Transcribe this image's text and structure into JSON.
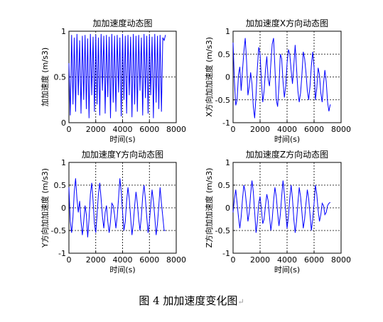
{
  "caption": {
    "text": "图 4  加加速度变化图",
    "mark": "↵"
  },
  "chart_data": [
    {
      "type": "line",
      "title": "加加速度动态图",
      "xlabel": "时间(s)",
      "ylabel": "加加速度 (m/s3)",
      "xlim": [
        0,
        8000
      ],
      "ylim": [
        0,
        1
      ],
      "xticks": [
        0,
        2000,
        4000,
        6000,
        8000
      ],
      "yticks": [
        0,
        0.5,
        1
      ],
      "ytick_labels": [
        "0",
        "0.5",
        "1"
      ],
      "grid": true,
      "series": [
        {
          "color": "#0000ff",
          "x": [
            0,
            100,
            200,
            300,
            400,
            500,
            600,
            700,
            800,
            900,
            1000,
            1100,
            1200,
            1300,
            1400,
            1500,
            1600,
            1700,
            1800,
            1900,
            2000,
            2100,
            2200,
            2300,
            2400,
            2500,
            2600,
            2700,
            2800,
            2900,
            3000,
            3100,
            3200,
            3300,
            3400,
            3500,
            3600,
            3700,
            3800,
            3900,
            4000,
            4100,
            4200,
            4300,
            4400,
            4500,
            4600,
            4700,
            4800,
            4900,
            5000,
            5100,
            5200,
            5300,
            5400,
            5500,
            5600,
            5700,
            5800,
            5900,
            6000,
            6100,
            6200,
            6300,
            6400,
            6500,
            6600,
            6700,
            6800,
            6900,
            7000,
            7100,
            7200
          ],
          "y": [
            0.65,
            0.08,
            0.96,
            0.2,
            0.93,
            0.12,
            0.97,
            0.3,
            0.9,
            0.1,
            0.95,
            0.25,
            0.96,
            0.15,
            0.92,
            0.05,
            0.97,
            0.3,
            0.94,
            0.12,
            0.96,
            0.2,
            0.93,
            0.08,
            0.97,
            0.35,
            0.95,
            0.1,
            0.96,
            0.28,
            0.94,
            0.05,
            0.97,
            0.22,
            0.95,
            0.12,
            0.96,
            0.33,
            0.93,
            0.07,
            0.97,
            0.25,
            0.95,
            0.1,
            0.96,
            0.3,
            0.94,
            0.06,
            0.97,
            0.2,
            0.95,
            0.12,
            0.96,
            0.35,
            0.93,
            0.08,
            0.97,
            0.27,
            0.95,
            0.1,
            0.96,
            0.3,
            0.94,
            0.05,
            0.97,
            0.22,
            0.95,
            0.15,
            0.96,
            0.12,
            0.93,
            0.9,
            0.96
          ]
        }
      ]
    },
    {
      "type": "line",
      "title": "加加速度X方向动态图",
      "xlabel": "时间(s)",
      "ylabel": "X方向加加速度 (m/s3)",
      "xlim": [
        0,
        8000
      ],
      "ylim": [
        -1,
        1
      ],
      "xticks": [
        0,
        2000,
        4000,
        6000,
        8000
      ],
      "yticks": [
        -1,
        -0.5,
        0,
        0.5,
        1
      ],
      "ytick_labels": [
        "-1",
        "-0.5",
        "0",
        "0.5",
        "1"
      ],
      "grid": true,
      "series": [
        {
          "color": "#0000ff",
          "x": [
            0,
            100,
            200,
            300,
            400,
            500,
            600,
            700,
            800,
            900,
            1000,
            1100,
            1200,
            1300,
            1400,
            1500,
            1600,
            1700,
            1800,
            1900,
            2000,
            2100,
            2200,
            2300,
            2400,
            2500,
            2600,
            2700,
            2800,
            2900,
            3000,
            3100,
            3200,
            3300,
            3400,
            3500,
            3600,
            3700,
            3800,
            3900,
            4000,
            4100,
            4200,
            4300,
            4400,
            4500,
            4600,
            4700,
            4800,
            4900,
            5000,
            5100,
            5200,
            5300,
            5400,
            5500,
            5600,
            5700,
            5800,
            5900,
            6000,
            6100,
            6200,
            6300,
            6400,
            6500,
            6600,
            6700,
            6800,
            6900,
            7000,
            7100,
            7200
          ],
          "y": [
            0.75,
            -0.1,
            -0.62,
            -0.5,
            0.05,
            0.22,
            -0.3,
            0.15,
            0.55,
            0.85,
            0.35,
            -0.4,
            -0.2,
            0.1,
            -0.15,
            -0.65,
            -0.9,
            -0.4,
            0.2,
            0.65,
            0.5,
            -0.1,
            -0.55,
            -0.3,
            0.15,
            0.45,
            -0.05,
            -0.2,
            0.3,
            0.72,
            0.85,
            0.2,
            -0.5,
            -0.65,
            -0.2,
            0.5,
            0.4,
            -0.1,
            -0.45,
            -0.2,
            0.3,
            0.6,
            0.5,
            0.15,
            -0.15,
            0.25,
            0.7,
            0.2,
            -0.3,
            -0.55,
            -0.35,
            0.05,
            0.55,
            0.4,
            0.1,
            -0.3,
            -0.5,
            -0.2,
            0.25,
            0.55,
            0.2,
            -0.5,
            -0.25,
            0.2,
            0.05,
            -0.35,
            -0.55,
            -0.15,
            0.15,
            -0.1,
            -0.55,
            -0.75,
            -0.6
          ]
        }
      ]
    },
    {
      "type": "line",
      "title": "加加速度Y方向动态图",
      "xlabel": "时间(s)",
      "ylabel": "Y方向加加速度 (m/s3)",
      "xlim": [
        0,
        8000
      ],
      "ylim": [
        -1,
        1
      ],
      "xticks": [
        0,
        2000,
        4000,
        6000,
        8000
      ],
      "yticks": [
        -1,
        -0.5,
        0,
        0.5,
        1
      ],
      "ytick_labels": [
        "-1",
        "-0.5",
        "0",
        "0.5",
        "1"
      ],
      "grid": true,
      "series": [
        {
          "color": "#0000ff",
          "x": [
            0,
            100,
            200,
            300,
            400,
            500,
            600,
            700,
            800,
            900,
            1000,
            1100,
            1200,
            1300,
            1400,
            1500,
            1600,
            1700,
            1800,
            1900,
            2000,
            2100,
            2200,
            2300,
            2400,
            2500,
            2600,
            2700,
            2800,
            2900,
            3000,
            3100,
            3200,
            3300,
            3400,
            3500,
            3600,
            3700,
            3800,
            3900,
            4000,
            4100,
            4200,
            4300,
            4400,
            4500,
            4600,
            4700,
            4800,
            4900,
            5000,
            5100,
            5200,
            5300,
            5400,
            5500,
            5600,
            5700,
            5800,
            5900,
            6000,
            6100,
            6200,
            6300,
            6400,
            6500,
            6600,
            6700,
            6800,
            6900,
            7000,
            7100,
            7200
          ],
          "y": [
            0.45,
            -0.3,
            -0.55,
            -0.2,
            0.35,
            0.65,
            0.2,
            -0.1,
            0.15,
            -0.3,
            -0.6,
            -0.3,
            0.05,
            -0.15,
            -0.65,
            -0.25,
            0.3,
            0.55,
            0.15,
            -0.35,
            -0.55,
            -0.15,
            0.3,
            0.55,
            0.2,
            -0.2,
            -0.45,
            -0.1,
            0.05,
            -0.3,
            -0.55,
            -0.3,
            0.1,
            0.05,
            -0.15,
            -0.45,
            -0.2,
            0.2,
            0.65,
            0.35,
            -0.1,
            -0.5,
            -0.3,
            0.15,
            0.45,
            0.2,
            -0.2,
            -0.6,
            -0.35,
            0.05,
            0.35,
            0.1,
            -0.25,
            -0.5,
            -0.2,
            0.25,
            0.5,
            0.2,
            -0.2,
            -0.55,
            -0.3,
            0.05,
            0.4,
            0.15,
            -0.2,
            -0.6,
            -0.35,
            0.05,
            0.45,
            0.1,
            -0.2,
            -0.5,
            -0.5
          ]
        }
      ]
    },
    {
      "type": "line",
      "title": "加加速度Z方向动态图",
      "xlabel": "时间(s)",
      "ylabel": "Z方向加加速度 (m/s3)",
      "xlim": [
        0,
        8000
      ],
      "ylim": [
        -1,
        1
      ],
      "xticks": [
        0,
        2000,
        4000,
        6000,
        8000
      ],
      "yticks": [
        -1,
        -0.5,
        0,
        0.5,
        1
      ],
      "ytick_labels": [
        "-1",
        "-0.5",
        "0",
        "0.5",
        "1"
      ],
      "grid": true,
      "series": [
        {
          "color": "#0000ff",
          "x": [
            0,
            100,
            200,
            300,
            400,
            500,
            600,
            700,
            800,
            900,
            1000,
            1100,
            1200,
            1300,
            1400,
            1500,
            1600,
            1700,
            1800,
            1900,
            2000,
            2100,
            2200,
            2300,
            2400,
            2500,
            2600,
            2700,
            2800,
            2900,
            3000,
            3100,
            3200,
            3300,
            3400,
            3500,
            3600,
            3700,
            3800,
            3900,
            4000,
            4100,
            4200,
            4300,
            4400,
            4500,
            4600,
            4700,
            4800,
            4900,
            5000,
            5100,
            5200,
            5300,
            5400,
            5500,
            5600,
            5700,
            5800,
            5900,
            6000,
            6100,
            6200,
            6300,
            6400,
            6500,
            6600,
            6700,
            6800,
            6900,
            7000,
            7100,
            7200
          ],
          "y": [
            -0.1,
            0.2,
            0.4,
            0.1,
            -0.2,
            -0.45,
            -0.2,
            0.2,
            0.5,
            0.35,
            0.05,
            -0.3,
            -0.1,
            0.3,
            0.6,
            0.35,
            -0.1,
            -0.55,
            -0.3,
            0.1,
            0.25,
            -0.05,
            -0.35,
            -0.25,
            0.05,
            0.3,
            0.15,
            -0.2,
            -0.5,
            -0.25,
            0.15,
            0.45,
            0.25,
            -0.1,
            -0.4,
            -0.15,
            0.25,
            0.6,
            0.3,
            -0.1,
            -0.45,
            -0.2,
            0.2,
            0.5,
            0.2,
            -0.25,
            -0.55,
            -0.3,
            0.1,
            0.45,
            0.25,
            -0.1,
            -0.45,
            -0.25,
            0.1,
            0.4,
            0.2,
            -0.15,
            -0.5,
            -0.25,
            0.1,
            0.5,
            0.3,
            -0.05,
            -0.3,
            -0.15,
            0.1,
            0.05,
            -0.15,
            -0.1,
            0.05,
            0.1,
            0.12
          ]
        }
      ]
    }
  ]
}
